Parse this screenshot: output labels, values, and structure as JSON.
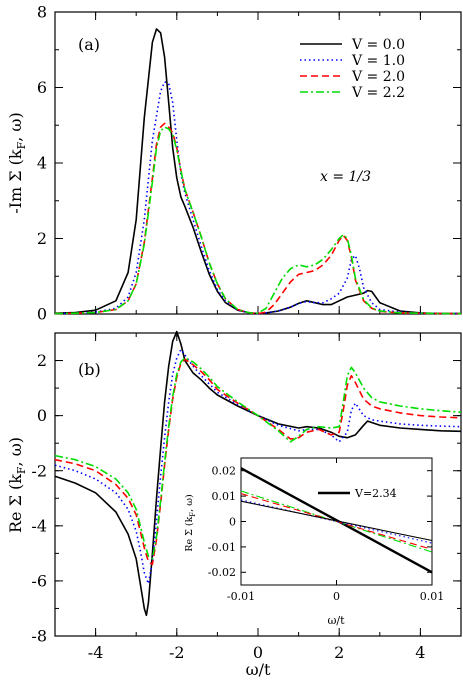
{
  "chart_data": [
    {
      "type": "line",
      "panel_label": "(a)",
      "ylabel_main": "-Im Σ (k",
      "ylabel_sub": "F",
      "ylabel_tail": ", ω)",
      "xlim": [
        -5,
        5
      ],
      "ylim": [
        0,
        8
      ],
      "xticks": [
        -4,
        -2,
        0,
        2,
        4
      ],
      "yticks": [
        0,
        2,
        4,
        6,
        8
      ],
      "yticklabels": [
        "0",
        "2",
        "4",
        "6",
        "8"
      ],
      "annotation": "x = 1/3",
      "legend_position": "top-right",
      "series": [
        {
          "name": "V = 0.0",
          "color": "#000000",
          "dash": "solid",
          "x": [
            -5,
            -4.5,
            -4,
            -3.5,
            -3.2,
            -3,
            -2.8,
            -2.6,
            -2.5,
            -2.4,
            -2.3,
            -2.2,
            -2.1,
            -2,
            -1.9,
            -1.8,
            -1.6,
            -1.4,
            -1.2,
            -1,
            -0.8,
            -0.5,
            -0.2,
            0,
            0.2,
            0.5,
            0.8,
            1,
            1.2,
            1.4,
            1.6,
            1.8,
            2,
            2.2,
            2.4,
            2.6,
            2.7,
            2.8,
            3,
            3.5,
            4,
            4.5,
            5
          ],
          "y": [
            0.02,
            0.04,
            0.1,
            0.35,
            1.1,
            2.5,
            5.2,
            7.2,
            7.55,
            7.45,
            6.8,
            5.6,
            4.4,
            3.6,
            3.1,
            2.85,
            2.3,
            1.65,
            1.05,
            0.6,
            0.3,
            0.1,
            0.03,
            0.01,
            0.03,
            0.08,
            0.18,
            0.28,
            0.35,
            0.3,
            0.25,
            0.25,
            0.35,
            0.45,
            0.5,
            0.55,
            0.62,
            0.6,
            0.3,
            0.08,
            0.03,
            0.01,
            0.01
          ]
        },
        {
          "name": "V = 1.0",
          "color": "#0000ff",
          "dash": "dot",
          "x": [
            -5,
            -4.5,
            -4,
            -3.5,
            -3.2,
            -3,
            -2.8,
            -2.6,
            -2.4,
            -2.3,
            -2.2,
            -2.1,
            -2,
            -1.9,
            -1.8,
            -1.6,
            -1.4,
            -1.2,
            -1,
            -0.8,
            -0.5,
            -0.2,
            0,
            0.2,
            0.5,
            0.8,
            1,
            1.2,
            1.4,
            1.6,
            1.8,
            2,
            2.2,
            2.3,
            2.4,
            2.5,
            2.6,
            2.8,
            3,
            3.5,
            4,
            4.5,
            5
          ],
          "y": [
            0.01,
            0.02,
            0.05,
            0.15,
            0.45,
            1.1,
            2.5,
            4.6,
            5.9,
            6.15,
            6.1,
            5.6,
            4.6,
            3.7,
            3.2,
            2.5,
            1.8,
            1.15,
            0.65,
            0.35,
            0.1,
            0.03,
            0.01,
            0.03,
            0.08,
            0.18,
            0.28,
            0.33,
            0.3,
            0.3,
            0.4,
            0.55,
            0.95,
            1.45,
            1.55,
            1.2,
            0.7,
            0.3,
            0.12,
            0.05,
            0.02,
            0.01,
            0.01
          ]
        },
        {
          "name": "V = 2.0",
          "color": "#ff0000",
          "dash": "dash",
          "x": [
            -5,
            -4.5,
            -4,
            -3.5,
            -3.2,
            -3,
            -2.8,
            -2.6,
            -2.5,
            -2.4,
            -2.3,
            -2.2,
            -2.1,
            -2,
            -1.9,
            -1.8,
            -1.6,
            -1.4,
            -1.2,
            -1,
            -0.8,
            -0.5,
            -0.2,
            0,
            0.2,
            0.4,
            0.6,
            0.8,
            1,
            1.2,
            1.4,
            1.6,
            1.8,
            2,
            2.1,
            2.2,
            2.3,
            2.4,
            2.6,
            2.8,
            3,
            3.5,
            4,
            4.5,
            5
          ],
          "y": [
            0.01,
            0.02,
            0.04,
            0.12,
            0.35,
            0.8,
            1.9,
            3.6,
            4.5,
            4.95,
            5.05,
            4.95,
            4.8,
            4.4,
            3.8,
            3.3,
            2.7,
            2.05,
            1.35,
            0.8,
            0.4,
            0.12,
            0.03,
            0.01,
            0.05,
            0.25,
            0.55,
            0.85,
            1.05,
            1.1,
            1.15,
            1.3,
            1.55,
            1.95,
            2.08,
            1.95,
            1.5,
            0.9,
            0.35,
            0.15,
            0.07,
            0.03,
            0.02,
            0.01,
            0.01
          ]
        },
        {
          "name": "V = 2.2",
          "color": "#00dd00",
          "dash": "dashdot",
          "x": [
            -5,
            -4.5,
            -4,
            -3.5,
            -3.2,
            -3,
            -2.8,
            -2.6,
            -2.5,
            -2.4,
            -2.3,
            -2.2,
            -2.1,
            -2,
            -1.9,
            -1.8,
            -1.6,
            -1.4,
            -1.2,
            -1,
            -0.8,
            -0.5,
            -0.2,
            0,
            0.2,
            0.4,
            0.6,
            0.8,
            1,
            1.2,
            1.4,
            1.6,
            1.8,
            2,
            2.1,
            2.2,
            2.3,
            2.4,
            2.6,
            2.8,
            3,
            3.5,
            4,
            4.5,
            5
          ],
          "y": [
            0.01,
            0.02,
            0.04,
            0.12,
            0.35,
            0.8,
            1.85,
            3.5,
            4.4,
            4.85,
            4.95,
            4.9,
            4.75,
            4.35,
            3.8,
            3.3,
            2.7,
            2.05,
            1.35,
            0.8,
            0.4,
            0.12,
            0.03,
            0.02,
            0.15,
            0.55,
            0.95,
            1.2,
            1.3,
            1.25,
            1.3,
            1.45,
            1.7,
            2.0,
            2.1,
            2.0,
            1.55,
            0.95,
            0.38,
            0.16,
            0.08,
            0.03,
            0.02,
            0.01,
            0.01
          ]
        }
      ]
    },
    {
      "type": "line",
      "panel_label": "(b)",
      "ylabel_main": "Re Σ (k",
      "ylabel_sub": "F",
      "ylabel_tail": ", ω)",
      "xlabel": "ω/t",
      "xlim": [
        -5,
        5
      ],
      "ylim": [
        -8,
        3
      ],
      "xticks": [
        -4,
        -2,
        0,
        2,
        4
      ],
      "xticklabels": [
        "-4",
        "-2",
        "0",
        "2",
        "4"
      ],
      "yticks": [
        -8,
        -6,
        -4,
        -2,
        0,
        2
      ],
      "yticklabels": [
        "-8",
        "-6",
        "-4",
        "-2",
        "0",
        "2"
      ],
      "series": [
        {
          "name": "V = 0.0",
          "color": "#000000",
          "dash": "solid",
          "x": [
            -5,
            -4.5,
            -4,
            -3.5,
            -3.2,
            -3,
            -2.9,
            -2.8,
            -2.75,
            -2.7,
            -2.6,
            -2.5,
            -2.4,
            -2.3,
            -2.2,
            -2.1,
            -2,
            -1.9,
            -1.8,
            -1.6,
            -1.4,
            -1.2,
            -1,
            -0.5,
            0,
            0.5,
            1,
            1.2,
            1.5,
            1.8,
            2,
            2.2,
            2.4,
            2.6,
            2.7,
            2.8,
            3,
            3.5,
            4,
            4.5,
            5
          ],
          "y": [
            -2.2,
            -2.45,
            -2.8,
            -3.5,
            -4.3,
            -5.2,
            -6.1,
            -7.0,
            -7.25,
            -6.8,
            -5.0,
            -3.0,
            -1.2,
            0.5,
            1.8,
            2.7,
            3.05,
            2.6,
            2.0,
            1.55,
            1.3,
            1.0,
            0.75,
            0.35,
            0.0,
            -0.3,
            -0.45,
            -0.4,
            -0.45,
            -0.6,
            -0.75,
            -0.8,
            -0.7,
            -0.35,
            -0.2,
            -0.25,
            -0.35,
            -0.45,
            -0.5,
            -0.55,
            -0.57
          ]
        },
        {
          "name": "V = 1.0",
          "color": "#0000ff",
          "dash": "dot",
          "x": [
            -5,
            -4.5,
            -4,
            -3.5,
            -3.2,
            -3,
            -2.9,
            -2.8,
            -2.7,
            -2.6,
            -2.5,
            -2.4,
            -2.3,
            -2.2,
            -2.1,
            -2,
            -1.9,
            -1.8,
            -1.6,
            -1.4,
            -1.2,
            -1,
            -0.5,
            0,
            0.5,
            1,
            1.2,
            1.5,
            1.8,
            2,
            2.2,
            2.3,
            2.4,
            2.6,
            2.8,
            3,
            3.5,
            4,
            4.5,
            5
          ],
          "y": [
            -1.8,
            -2.0,
            -2.3,
            -2.8,
            -3.4,
            -4.2,
            -4.9,
            -5.7,
            -6.1,
            -5.3,
            -3.8,
            -2.2,
            -0.8,
            0.5,
            1.5,
            2.1,
            2.4,
            2.2,
            1.8,
            1.45,
            1.15,
            0.85,
            0.4,
            0.0,
            -0.35,
            -0.55,
            -0.5,
            -0.5,
            -0.7,
            -0.95,
            -0.6,
            0.2,
            0.45,
            0.0,
            -0.15,
            -0.2,
            -0.3,
            -0.35,
            -0.38,
            -0.4
          ]
        },
        {
          "name": "V = 2.0",
          "color": "#ff0000",
          "dash": "dash",
          "x": [
            -5,
            -4.5,
            -4,
            -3.5,
            -3.2,
            -3,
            -2.9,
            -2.8,
            -2.7,
            -2.6,
            -2.5,
            -2.4,
            -2.3,
            -2.2,
            -2.1,
            -2,
            -1.9,
            -1.8,
            -1.6,
            -1.4,
            -1.2,
            -1,
            -0.5,
            0,
            0.5,
            0.8,
            1,
            1.2,
            1.5,
            1.8,
            2,
            2.1,
            2.2,
            2.3,
            2.4,
            2.6,
            2.8,
            3,
            3.5,
            4,
            4.5,
            5
          ],
          "y": [
            -1.6,
            -1.75,
            -2.0,
            -2.5,
            -3.0,
            -3.6,
            -4.2,
            -4.8,
            -5.3,
            -5.4,
            -4.5,
            -3.2,
            -1.8,
            -0.5,
            0.6,
            1.4,
            1.9,
            2.05,
            1.85,
            1.6,
            1.3,
            0.95,
            0.45,
            0.0,
            -0.5,
            -0.85,
            -0.8,
            -0.6,
            -0.5,
            -0.7,
            -0.6,
            0.2,
            1.1,
            1.45,
            1.2,
            0.6,
            0.35,
            0.25,
            0.1,
            0.0,
            -0.05,
            -0.08
          ]
        },
        {
          "name": "V = 2.2",
          "color": "#00dd00",
          "dash": "dashdot",
          "x": [
            -5,
            -4.5,
            -4,
            -3.5,
            -3.2,
            -3,
            -2.9,
            -2.8,
            -2.7,
            -2.6,
            -2.5,
            -2.4,
            -2.3,
            -2.2,
            -2.1,
            -2,
            -1.9,
            -1.8,
            -1.6,
            -1.4,
            -1.2,
            -1,
            -0.5,
            0,
            0.5,
            0.8,
            1,
            1.2,
            1.5,
            1.8,
            2,
            2.1,
            2.2,
            2.3,
            2.4,
            2.6,
            2.8,
            3,
            3.5,
            4,
            4.5,
            5
          ],
          "y": [
            -1.45,
            -1.6,
            -1.85,
            -2.3,
            -2.8,
            -3.4,
            -4.0,
            -4.6,
            -5.1,
            -5.2,
            -4.4,
            -3.1,
            -1.7,
            -0.4,
            0.7,
            1.5,
            1.95,
            2.1,
            1.95,
            1.7,
            1.4,
            1.05,
            0.5,
            0.0,
            -0.55,
            -0.95,
            -0.75,
            -0.5,
            -0.4,
            -0.45,
            -0.4,
            0.5,
            1.45,
            1.75,
            1.55,
            1.0,
            0.65,
            0.5,
            0.35,
            0.25,
            0.18,
            0.12
          ]
        }
      ]
    },
    {
      "type": "line",
      "role": "inset",
      "ylabel_main": "Re Σ (k",
      "ylabel_sub": "F",
      "ylabel_tail": ", ω)",
      "xlabel": "ω/t",
      "xlim": [
        -0.01,
        0.01
      ],
      "ylim": [
        -0.025,
        0.025
      ],
      "xticks": [
        -0.01,
        0,
        0.01
      ],
      "xticklabels": [
        "-0.01",
        "0",
        "0.01"
      ],
      "yticks": [
        -0.02,
        -0.01,
        0,
        0.01,
        0.02
      ],
      "yticklabels": [
        "-0.02",
        "-0.01",
        "0",
        "0.01",
        "0.02"
      ],
      "series": [
        {
          "name": "V=2.34",
          "color": "#000000",
          "dash": "solid",
          "width": 2.4,
          "x": [
            -0.01,
            0.01
          ],
          "y": [
            0.021,
            -0.02
          ]
        },
        {
          "name": "V = 2.2",
          "color": "#00dd00",
          "dash": "dashdot",
          "x": [
            -0.01,
            0.01
          ],
          "y": [
            0.012,
            -0.012
          ]
        },
        {
          "name": "V = 2.0",
          "color": "#ff0000",
          "dash": "dash",
          "x": [
            -0.01,
            0.01
          ],
          "y": [
            0.011,
            -0.011
          ]
        },
        {
          "name": "V = 1.0",
          "color": "#0000ff",
          "dash": "dot",
          "x": [
            -0.01,
            0.01
          ],
          "y": [
            0.0085,
            -0.0085
          ]
        },
        {
          "name": "V = 0.0",
          "color": "#000000",
          "dash": "solid",
          "x": [
            -0.01,
            0.01
          ],
          "y": [
            0.008,
            -0.0075
          ]
        }
      ]
    }
  ]
}
